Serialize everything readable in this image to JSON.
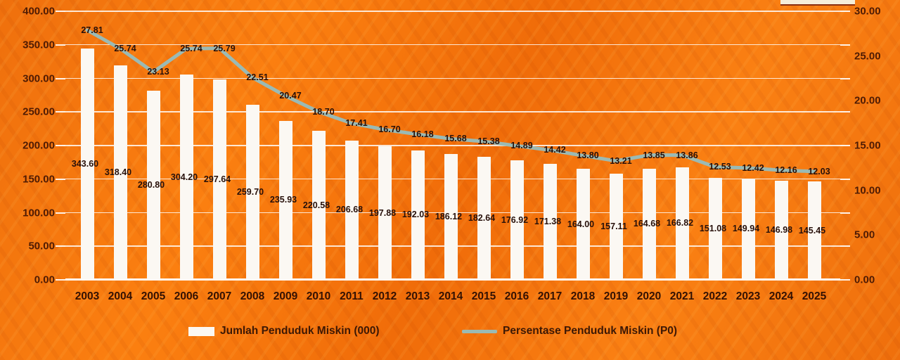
{
  "chart_data": {
    "type": "combo-bar-line",
    "categories": [
      "2003",
      "2004",
      "2005",
      "2006",
      "2007",
      "2008",
      "2009",
      "2010",
      "2011",
      "2012",
      "2013",
      "2014",
      "2015",
      "2016",
      "2017",
      "2018",
      "2019",
      "2020",
      "2021",
      "2022",
      "2023",
      "2024",
      "2025"
    ],
    "series": [
      {
        "name": "Jumlah Penduduk Miskin (000)",
        "type": "bar",
        "axis": "left",
        "color": "#fbf8f3",
        "values": [
          343.6,
          318.4,
          280.8,
          304.2,
          297.64,
          259.7,
          235.93,
          220.58,
          206.68,
          197.88,
          192.03,
          186.12,
          182.64,
          176.92,
          171.38,
          164.0,
          157.11,
          164.68,
          166.82,
          151.08,
          149.94,
          146.98,
          145.45
        ],
        "labels": [
          "343.60",
          "318.40",
          "280.80",
          "304.20",
          "297.64",
          "259.70",
          "235.93",
          "220.58",
          "206.68",
          "197.88",
          "192.03",
          "186.12",
          "182.64",
          "176.92",
          "171.38",
          "164.00",
          "157.11",
          "164.68",
          "166.82",
          "151.08",
          "149.94",
          "146.98",
          "145.45"
        ]
      },
      {
        "name": "Persentase Penduduk Miskin (P0)",
        "type": "line",
        "axis": "right",
        "color": "#9bbab4",
        "values": [
          27.81,
          25.74,
          23.13,
          25.74,
          25.79,
          22.51,
          20.47,
          18.7,
          17.41,
          16.7,
          16.18,
          15.68,
          15.38,
          14.89,
          14.42,
          13.8,
          13.21,
          13.85,
          13.86,
          12.53,
          12.42,
          12.16,
          12.03
        ],
        "labels": [
          "27.81",
          "25.74",
          "23.13",
          "25.74",
          "25.79",
          "22.51",
          "20.47",
          "18.70",
          "17.41",
          "16.70",
          "16.18",
          "15.68",
          "15.38",
          "14.89",
          "14.42",
          "13.80",
          "13.21",
          "13.85",
          "13.86",
          "12.53",
          "12.42",
          "12.16",
          "12.03"
        ]
      }
    ],
    "left_axis": {
      "min": 0,
      "max": 400,
      "step": 50,
      "tick_labels": [
        "400.00",
        "350.00",
        "300.00",
        "250.00",
        "200.00",
        "150.00",
        "100.00",
        "50.00",
        "0.00"
      ]
    },
    "right_axis": {
      "min": 0,
      "max": 30,
      "step": 5,
      "tick_labels": [
        "30.00",
        "25.00",
        "20.00",
        "15.00",
        "10.00",
        "5.00",
        "0.00"
      ]
    },
    "grid": true,
    "legend_position": "bottom",
    "legend": [
      "Jumlah Penduduk Miskin (000)",
      "Persentase Penduduk Miskin (P0)"
    ]
  },
  "colors": {
    "background_orange": "#f4760f",
    "bar_fill": "#fbf8f3",
    "line_stroke": "#9bbab4",
    "axis_text": "#4e1b04",
    "data_label_text": "#27100a",
    "gridline": "#ffffff"
  }
}
